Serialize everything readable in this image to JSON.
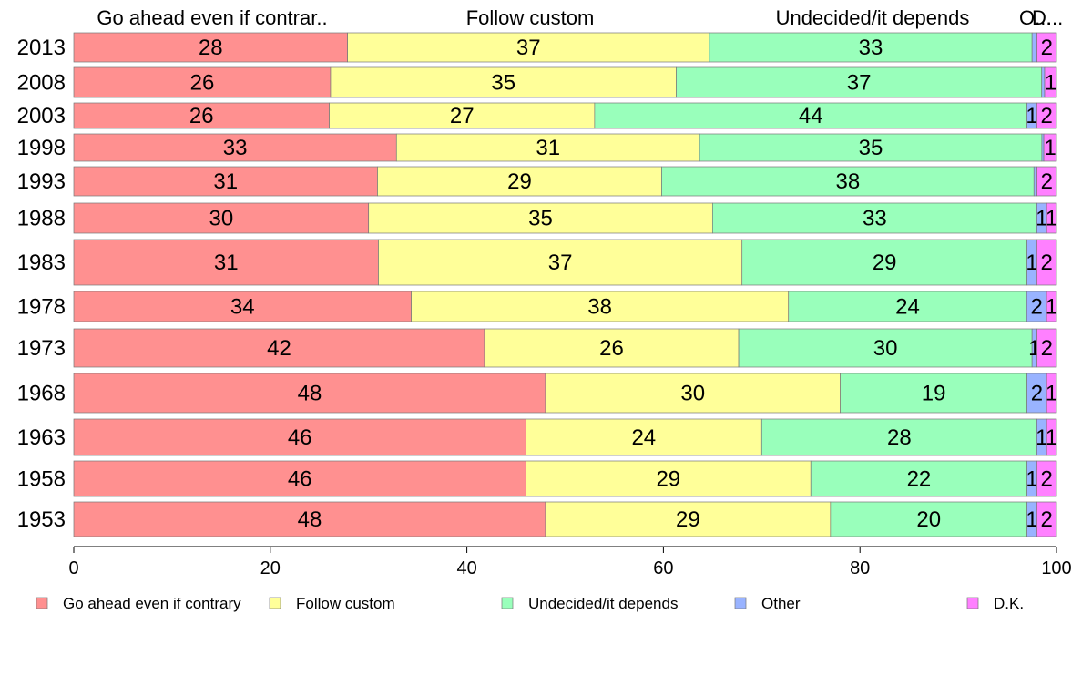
{
  "chart_data": {
    "type": "bar",
    "orientation": "horizontal",
    "stacked": true,
    "percent": true,
    "categories": [
      "2013",
      "2008",
      "2003",
      "1998",
      "1993",
      "1988",
      "1983",
      "1978",
      "1973",
      "1968",
      "1963",
      "1958",
      "1953"
    ],
    "series": [
      {
        "name": "Go ahead even if contrary",
        "color": "#ff9090",
        "values": [
          28,
          26,
          26,
          33,
          31,
          30,
          31,
          34,
          42,
          48,
          46,
          46,
          48
        ]
      },
      {
        "name": "Follow custom",
        "color": "#ffff99",
        "values": [
          37,
          35,
          27,
          31,
          29,
          35,
          37,
          38,
          26,
          30,
          24,
          29,
          29
        ]
      },
      {
        "name": "Undecided/it depends",
        "color": "#99ffbb",
        "values": [
          33,
          37,
          44,
          35,
          38,
          33,
          29,
          24,
          30,
          19,
          28,
          22,
          20
        ]
      },
      {
        "name": "Other",
        "color": "#99b3ff",
        "values": [
          0.5,
          0.3,
          1,
          0.2,
          0.3,
          1,
          1,
          2,
          0.5,
          2,
          1,
          1,
          1
        ]
      },
      {
        "name": "D.K.",
        "color": "#ff80ff",
        "values": [
          2,
          1.2,
          2,
          1.3,
          2,
          1,
          2,
          1,
          2,
          1,
          1,
          2,
          2
        ]
      }
    ],
    "segment_labels": [
      [
        "28",
        "37",
        "33",
        "",
        "2"
      ],
      [
        "26",
        "35",
        "37",
        "",
        "1"
      ],
      [
        "26",
        "27",
        "44",
        "1",
        "2"
      ],
      [
        "33",
        "31",
        "35",
        "",
        "1"
      ],
      [
        "31",
        "29",
        "38",
        "",
        "2"
      ],
      [
        "30",
        "35",
        "33",
        "1",
        "1"
      ],
      [
        "31",
        "37",
        "29",
        "1",
        "2"
      ],
      [
        "34",
        "38",
        "24",
        "2",
        "1"
      ],
      [
        "42",
        "26",
        "30",
        "1",
        "2"
      ],
      [
        "48",
        "30",
        "19",
        "2",
        "1"
      ],
      [
        "46",
        "24",
        "28",
        "1",
        "1"
      ],
      [
        "46",
        "29",
        "22",
        "1",
        "2"
      ],
      [
        "48",
        "29",
        "20",
        "1",
        "2"
      ]
    ],
    "top_labels": [
      "Go ahead even if contrar..",
      "Follow custom",
      "Undecided/it depends",
      "O...",
      "D..."
    ],
    "x_ticks": [
      "0",
      "20",
      "40",
      "60",
      "80",
      "100"
    ],
    "xlim": [
      0,
      100
    ],
    "xlabel": "",
    "ylabel": "",
    "grid": false,
    "legend_position": "bottom"
  }
}
